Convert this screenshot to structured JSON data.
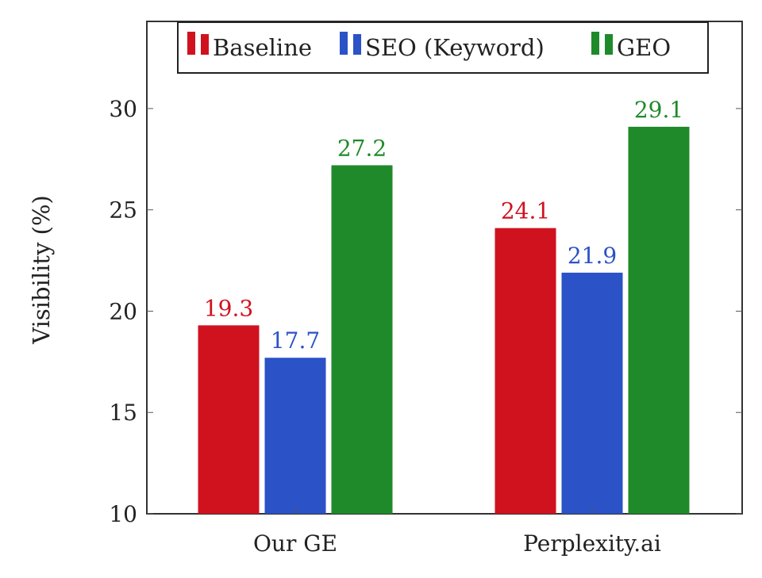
{
  "chart_data": {
    "type": "bar",
    "title": "",
    "xlabel": "",
    "ylabel": "Visibility (%)",
    "ylim": [
      10,
      34.3
    ],
    "yticks": [
      10,
      15,
      20,
      25,
      30
    ],
    "categories": [
      "Our GE",
      "Perplexity.ai"
    ],
    "series": [
      {
        "name": "Baseline",
        "color": "#d0121f",
        "values": [
          19.3,
          24.1
        ],
        "labels": [
          "19.3",
          "24.1"
        ]
      },
      {
        "name": "SEO (Keyword)",
        "color": "#2b52c6",
        "values": [
          17.7,
          21.9
        ],
        "labels": [
          "17.7",
          "21.9"
        ]
      },
      {
        "name": "GEO",
        "color": "#1f8a2a",
        "values": [
          27.2,
          29.1
        ],
        "labels": [
          "27.2",
          "29.1"
        ]
      }
    ],
    "legend": "top-center",
    "grid": false
  }
}
